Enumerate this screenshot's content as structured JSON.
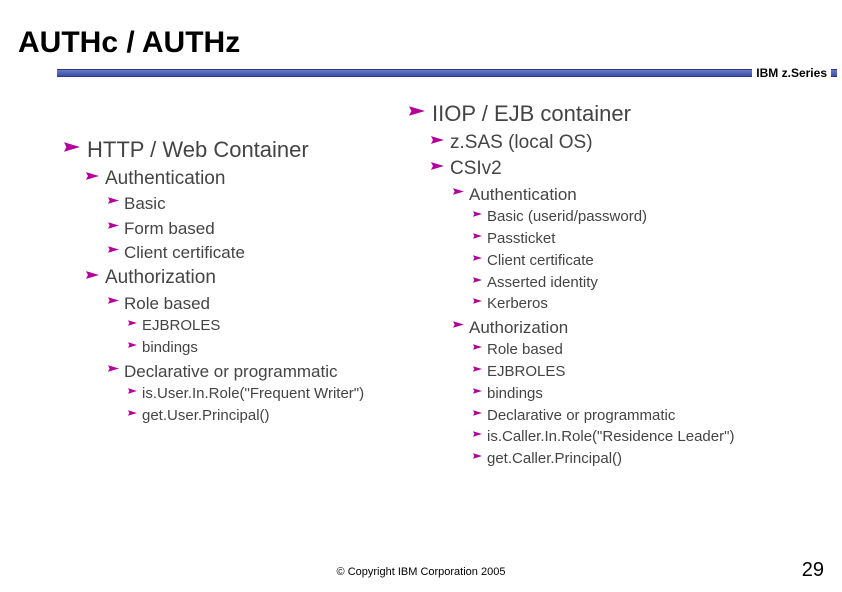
{
  "title": "AUTHc / AUTHz",
  "brand": "IBM z.Series",
  "copyright": "© Copyright IBM Corporation 2005",
  "page_number": "29",
  "bullet_color": "#b3009a",
  "text_color": "#444444",
  "rule_gradient_top": "#6a7acb",
  "rule_gradient_bottom": "#3c4fa6",
  "left": [
    {
      "level": 1,
      "text": "HTTP / Web Container"
    },
    {
      "level": 2,
      "text": "Authentication"
    },
    {
      "level": 3,
      "text": "Basic"
    },
    {
      "level": 3,
      "text": "Form based"
    },
    {
      "level": 3,
      "text": "Client certificate"
    },
    {
      "level": 2,
      "text": "Authorization"
    },
    {
      "level": 3,
      "text": "Role based"
    },
    {
      "level": 4,
      "text": "EJBROLES"
    },
    {
      "level": 4,
      "text": "bindings"
    },
    {
      "level": 3,
      "text": "Declarative or programmatic"
    },
    {
      "level": 4,
      "text": "is.User.In.Role(\"Frequent Writer\")"
    },
    {
      "level": 4,
      "text": "get.User.Principal()"
    }
  ],
  "right": [
    {
      "level": 1,
      "text": "IIOP / EJB container"
    },
    {
      "level": 2,
      "text": "z.SAS (local OS)"
    },
    {
      "level": 2,
      "text": "CSIv2"
    },
    {
      "level": 3,
      "text": "Authentication"
    },
    {
      "level": 4,
      "text": "Basic (userid/password)"
    },
    {
      "level": 4,
      "text": "Passticket"
    },
    {
      "level": 4,
      "text": "Client certificate"
    },
    {
      "level": 4,
      "text": "Asserted identity"
    },
    {
      "level": 4,
      "text": "Kerberos"
    },
    {
      "level": 3,
      "text": "Authorization"
    },
    {
      "level": 4,
      "text": "Role based"
    },
    {
      "level": 4,
      "text": "EJBROLES"
    },
    {
      "level": 4,
      "text": "bindings"
    },
    {
      "level": 4,
      "text": "Declarative or programmatic"
    },
    {
      "level": 4,
      "text": "is.Caller.In.Role(\"Residence Leader\")"
    },
    {
      "level": 4,
      "text": "get.Caller.Principal()"
    }
  ],
  "bullet_sizes": {
    "1": 16,
    "2": 13,
    "3": 11,
    "4": 9
  }
}
